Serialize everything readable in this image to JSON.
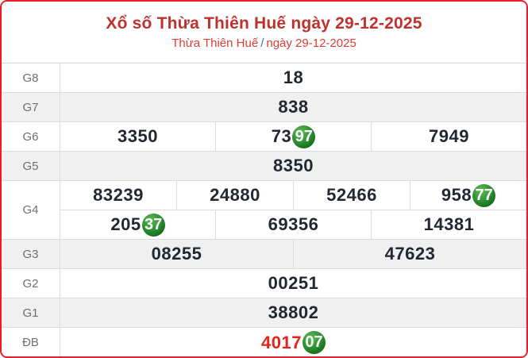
{
  "header": {
    "title": "Xổ số Thừa Thiên Huế ngày 29-12-2025",
    "breadcrumb_region": "Thừa Thiên Huế",
    "breadcrumb_separator": "/",
    "breadcrumb_date": "ngày 29-12-2025"
  },
  "colors": {
    "border_red": "#ea1c25",
    "title_red": "#be322d",
    "subtitle_red": "#dd3d35",
    "separator_blue": "#3f6fb3",
    "special_prize_red": "#e7231a",
    "loto_circle_green": "#2f9134",
    "shaded_row_gray": "#f0f0f0",
    "number_dark": "#232731"
  },
  "table": {
    "rows": [
      {
        "label": "G8",
        "shaded": false,
        "cells": [
          {
            "text": "18"
          }
        ]
      },
      {
        "label": "G7",
        "shaded": true,
        "cells": [
          {
            "text": "838"
          }
        ]
      },
      {
        "label": "G6",
        "shaded": false,
        "cells": [
          {
            "text": "3350"
          },
          {
            "text": "7397",
            "prefix": "73",
            "highlight": "97"
          },
          {
            "text": "7949"
          }
        ]
      },
      {
        "label": "G5",
        "shaded": true,
        "cells": [
          {
            "text": "8350"
          }
        ]
      },
      {
        "label": "G4",
        "shaded": false,
        "subrows": [
          [
            {
              "text": "83239"
            },
            {
              "text": "24880"
            },
            {
              "text": "52466"
            },
            {
              "text": "95877",
              "prefix": "958",
              "highlight": "77"
            }
          ],
          [
            {
              "text": "20537",
              "prefix": "205",
              "highlight": "37"
            },
            {
              "text": "69356"
            },
            {
              "text": "14381"
            }
          ]
        ]
      },
      {
        "label": "G3",
        "shaded": true,
        "cells": [
          {
            "text": "08255"
          },
          {
            "text": "47623"
          }
        ]
      },
      {
        "label": "G2",
        "shaded": false,
        "cells": [
          {
            "text": "00251"
          }
        ]
      },
      {
        "label": "G1",
        "shaded": true,
        "cells": [
          {
            "text": "38802"
          }
        ]
      },
      {
        "label": "ĐB",
        "shaded": false,
        "cells": [
          {
            "text": "401707",
            "prefix": "4017",
            "highlight": "07",
            "special": true
          }
        ]
      }
    ]
  }
}
